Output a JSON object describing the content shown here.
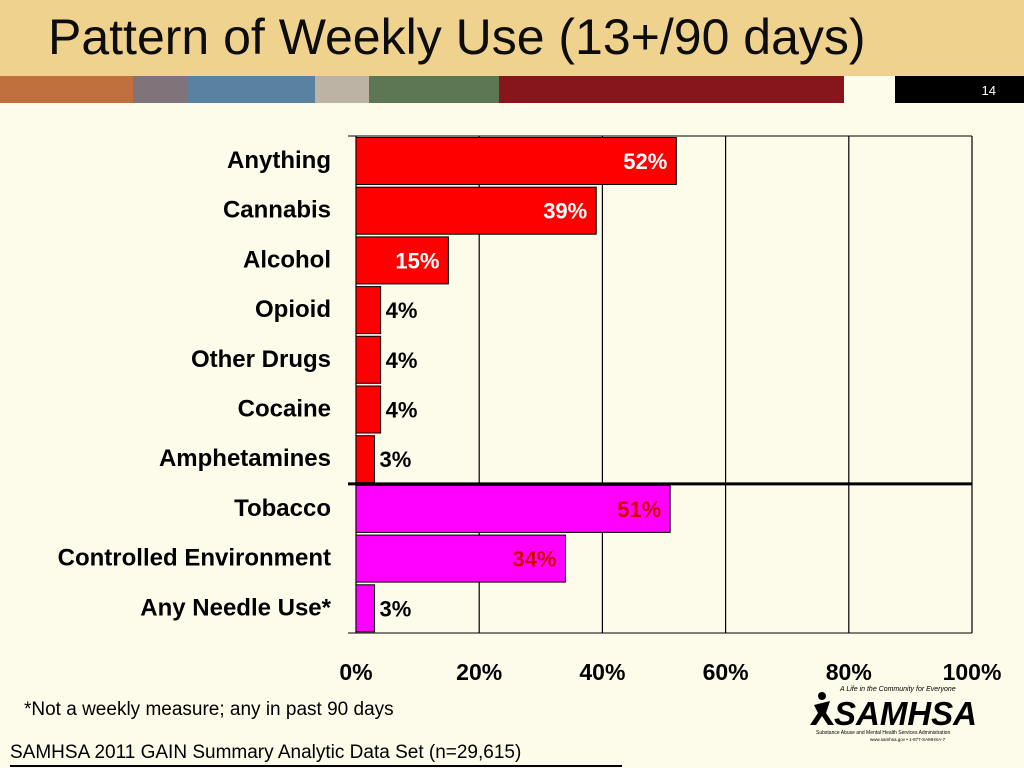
{
  "slide": {
    "title": "Pattern of Weekly Use (13+/90 days)",
    "number": "14",
    "footnote": "*Not a weekly measure; any in past 90 days",
    "source": "SAMHSA 2011 GAIN Summary Analytic Data Set (n=29,615)",
    "logo": {
      "tagline": "A Life in the Community for Everyone",
      "name": "SAMHSA",
      "subtitle": "Substance Abuse and Mental Health Services Administration",
      "contact": "www.samhsa.gov • 1-877-SAMHSA-7"
    }
  },
  "colors": {
    "header": "#efd28e",
    "background": "#fdfbe9",
    "stripe": [
      "#c0703c",
      "#807379",
      "#5981a2",
      "#bdb3a4",
      "#5d7653",
      "#87161c",
      "#fdfbe9",
      "#000000"
    ],
    "substance_bar": "#ff0000",
    "other_bar": "#ff00ff"
  },
  "chart_data": {
    "type": "bar",
    "orientation": "horizontal",
    "categories": [
      "Anything",
      "Cannabis",
      "Alcohol",
      "Opioid",
      "Other Drugs",
      "Cocaine",
      "Amphetamines",
      "Tobacco",
      "Controlled Environment",
      "Any Needle Use*"
    ],
    "values": [
      52,
      39,
      15,
      4,
      4,
      4,
      3,
      51,
      34,
      3
    ],
    "data_labels": [
      "52%",
      "39%",
      "15%",
      "4%",
      "4%",
      "4%",
      "3%",
      "51%",
      "34%",
      "3%"
    ],
    "bar_colors": [
      "#ff0000",
      "#ff0000",
      "#ff0000",
      "#ff0000",
      "#ff0000",
      "#ff0000",
      "#ff0000",
      "#ff00ff",
      "#ff00ff",
      "#ff00ff"
    ],
    "label_colors": [
      "#ffffff",
      "#ffffff",
      "#ffffff",
      "#000000",
      "#000000",
      "#000000",
      "#000000",
      "#cc0000",
      "#cc0000",
      "#000000"
    ],
    "xlim": [
      0,
      100
    ],
    "xticks": [
      0,
      20,
      40,
      60,
      80,
      100
    ],
    "xtick_labels": [
      "0%",
      "20%",
      "40%",
      "60%",
      "80%",
      "100%"
    ],
    "grid": true,
    "group_separator_after": "Amphetamines"
  }
}
